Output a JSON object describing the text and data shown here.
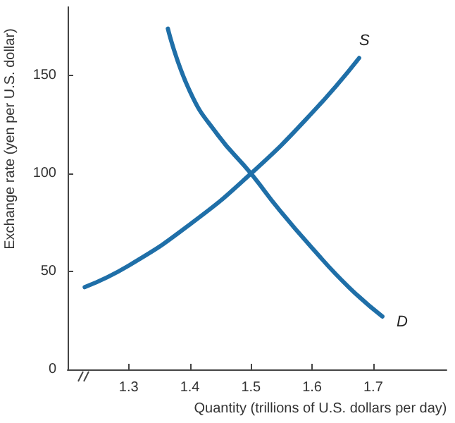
{
  "chart_data": {
    "type": "line",
    "xlabel": "Quantity (trillions of U.S. dollars per day)",
    "ylabel": "Exchange rate (yen per U.S. dollar)",
    "xlim": [
      1.2,
      1.82
    ],
    "xticks": [
      1.3,
      1.4,
      1.5,
      1.6,
      1.7
    ],
    "ylim": [
      0,
      185
    ],
    "yticks": [
      0,
      50,
      100,
      150
    ],
    "grid": false,
    "legend": false,
    "marker": "none",
    "series": [
      {
        "name": "S",
        "color": "#1f6fa8",
        "x": [
          1.228,
          1.3,
          1.4,
          1.5,
          1.6,
          1.677
        ],
        "values": [
          42,
          53,
          74,
          100,
          131,
          159
        ]
      },
      {
        "name": "D",
        "color": "#1f6fa8",
        "x": [
          1.364,
          1.4,
          1.445,
          1.5,
          1.545,
          1.6,
          1.66,
          1.715
        ],
        "values": [
          174,
          142,
          120,
          100,
          82,
          62,
          42,
          27
        ]
      }
    ]
  }
}
